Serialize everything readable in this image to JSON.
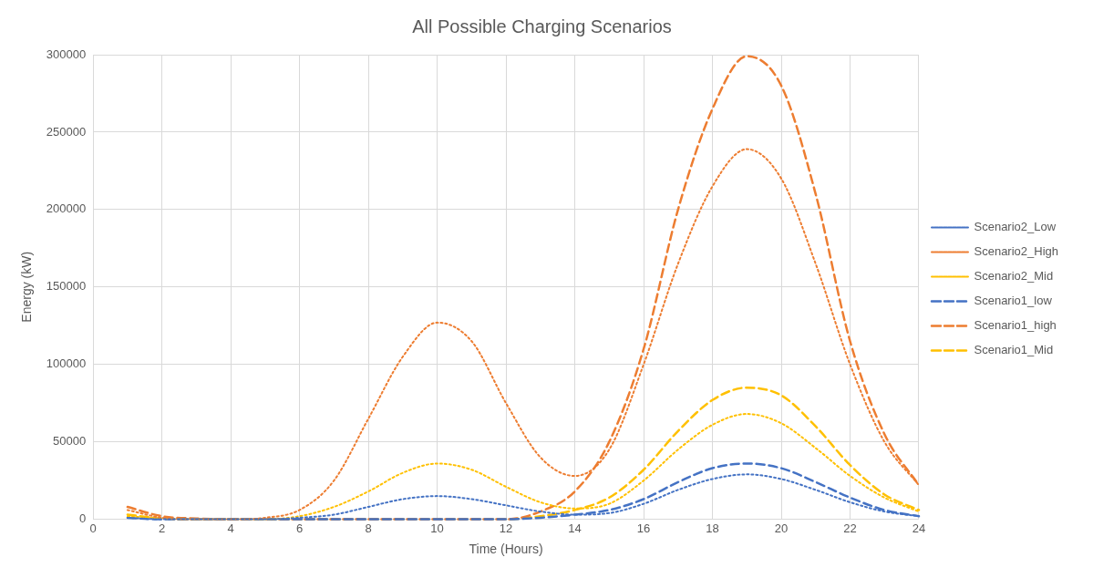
{
  "chart_data": {
    "type": "line",
    "title": "All Possible Charging Scenarios",
    "xlabel": "Time (Hours)",
    "ylabel": "Energy (kW)",
    "x": [
      1,
      2,
      3,
      4,
      5,
      6,
      7,
      8,
      9,
      10,
      11,
      12,
      13,
      14,
      15,
      16,
      17,
      18,
      19,
      20,
      21,
      22,
      23,
      24
    ],
    "xlim": [
      0,
      24
    ],
    "xticks": [
      0,
      2,
      4,
      6,
      8,
      10,
      12,
      14,
      16,
      18,
      20,
      22,
      24
    ],
    "ylim": [
      0,
      300000
    ],
    "yticks": [
      0,
      50000,
      100000,
      150000,
      200000,
      250000,
      300000
    ],
    "grid": true,
    "legend": "right",
    "marker": "none",
    "series": [
      {
        "name": "Scenario2_Low",
        "color": "#4472c4",
        "line_style": "dotted",
        "values": [
          1000,
          0,
          0,
          0,
          0,
          1000,
          3000,
          8000,
          13000,
          15000,
          13000,
          9000,
          5000,
          3000,
          4000,
          10000,
          19000,
          26000,
          29000,
          26000,
          19000,
          11000,
          5000,
          2000
        ]
      },
      {
        "name": "Scenario2_High",
        "color": "#ed7d31",
        "line_style": "dotted",
        "values": [
          6000,
          1000,
          0,
          0,
          1000,
          6000,
          25000,
          65000,
          105000,
          127000,
          115000,
          75000,
          40000,
          28000,
          45000,
          100000,
          165000,
          215000,
          239000,
          220000,
          165000,
          100000,
          50000,
          22000
        ]
      },
      {
        "name": "Scenario2_Mid",
        "color": "#ffc000",
        "line_style": "dotted",
        "values": [
          2000,
          500,
          0,
          0,
          0,
          2000,
          8000,
          18000,
          30000,
          36000,
          32000,
          21000,
          11000,
          7000,
          10000,
          25000,
          45000,
          61000,
          68000,
          62000,
          46000,
          28000,
          14000,
          5000
        ]
      },
      {
        "name": "Scenario1_low",
        "color": "#4472c4",
        "line_style": "dashed",
        "values": [
          1000,
          0,
          0,
          0,
          0,
          0,
          0,
          0,
          0,
          0,
          0,
          0,
          1000,
          3000,
          6000,
          13000,
          24000,
          33000,
          36000,
          33000,
          24000,
          14000,
          6000,
          2000
        ]
      },
      {
        "name": "Scenario1_high",
        "color": "#ed7d31",
        "line_style": "dashed",
        "values": [
          8000,
          2000,
          500,
          0,
          0,
          0,
          0,
          0,
          0,
          0,
          0,
          0,
          5000,
          18000,
          50000,
          110000,
          200000,
          265000,
          299000,
          280000,
          210000,
          115000,
          55000,
          22000
        ]
      },
      {
        "name": "Scenario1_Mid",
        "color": "#ffc000",
        "line_style": "dashed",
        "values": [
          3000,
          500,
          0,
          0,
          0,
          0,
          0,
          0,
          0,
          0,
          0,
          0,
          2000,
          6000,
          14000,
          32000,
          57000,
          77000,
          85000,
          80000,
          60000,
          35000,
          16000,
          6000
        ]
      }
    ]
  }
}
